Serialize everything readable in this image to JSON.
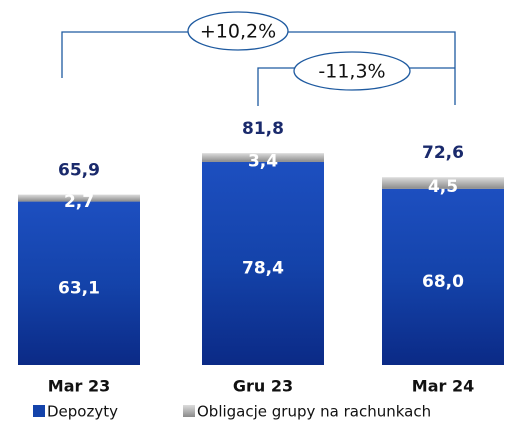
{
  "chart_data": {
    "type": "stacked_bar",
    "categories": [
      "Mar 23",
      "Gru 23",
      "Mar 24"
    ],
    "series": [
      {
        "name": "Depozyty",
        "color": "#1240a8",
        "values": [
          63.1,
          78.4,
          68.0
        ],
        "value_labels": [
          "63,1",
          "78,4",
          "68,0"
        ]
      },
      {
        "name": "Obligacje grupy na rachunkach",
        "color": "#a8a8a8",
        "values": [
          2.7,
          3.4,
          4.5
        ],
        "value_labels": [
          "2,7",
          "3,4",
          "4,5"
        ]
      }
    ],
    "totals": [
      65.9,
      81.8,
      72.6
    ],
    "total_labels": [
      "65,9",
      "81,8",
      "72,6"
    ],
    "annotations": [
      "+10,2%",
      "-11,3%"
    ]
  }
}
